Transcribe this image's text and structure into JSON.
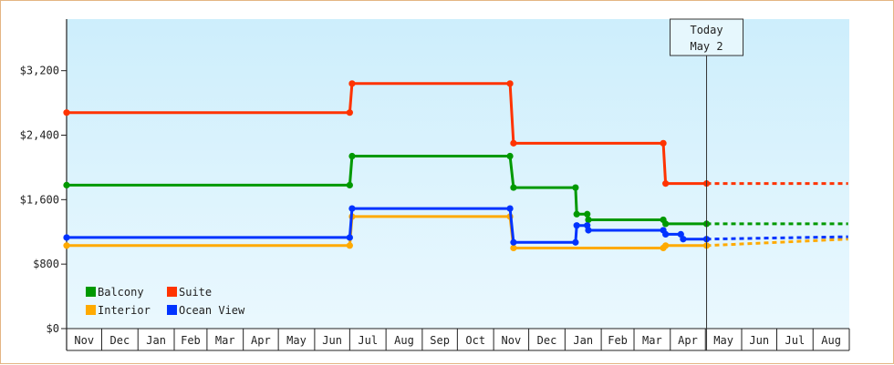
{
  "chart_data": {
    "type": "line",
    "title": "",
    "xlabel": "",
    "ylabel": "",
    "x_months": [
      "Nov",
      "Dec",
      "Jan",
      "Feb",
      "Mar",
      "Apr",
      "May",
      "Jun",
      "Jul",
      "Aug",
      "Sep",
      "Oct",
      "Nov",
      "Dec",
      "Jan",
      "Feb",
      "Mar",
      "Apr",
      "May",
      "Jun",
      "Jul",
      "Aug"
    ],
    "x_range": [
      "2020-11-01",
      "2022-08-31"
    ],
    "ylim": [
      0,
      3840
    ],
    "y_ticks": [
      0,
      800,
      1600,
      2400,
      3200
    ],
    "y_tick_labels": [
      "$0",
      "$800",
      "$1,600",
      "$2,400",
      "$3,200"
    ],
    "grid": false,
    "legend_position": "bottom-left",
    "today": {
      "date": "2022-05-02",
      "label_line1": "Today",
      "label_line2": "May 2"
    },
    "series": [
      {
        "name": "Balcony",
        "color": "#009900",
        "points": [
          {
            "date": "2020-11-01",
            "value": 1780
          },
          {
            "date": "2021-07-01",
            "value": 1780
          },
          {
            "date": "2021-07-03",
            "value": 2140
          },
          {
            "date": "2021-11-15",
            "value": 2140
          },
          {
            "date": "2021-11-18",
            "value": 1750
          },
          {
            "date": "2022-01-10",
            "value": 1750
          },
          {
            "date": "2022-01-11",
            "value": 1420
          },
          {
            "date": "2022-01-20",
            "value": 1420
          },
          {
            "date": "2022-01-21",
            "value": 1350
          },
          {
            "date": "2022-03-26",
            "value": 1350
          },
          {
            "date": "2022-03-28",
            "value": 1300
          },
          {
            "date": "2022-05-02",
            "value": 1300
          }
        ],
        "forecast": [
          {
            "date": "2022-05-02",
            "value": 1300
          },
          {
            "date": "2022-08-31",
            "value": 1300
          }
        ]
      },
      {
        "name": "Suite",
        "color": "#ff3300",
        "points": [
          {
            "date": "2020-11-01",
            "value": 2680
          },
          {
            "date": "2021-07-01",
            "value": 2680
          },
          {
            "date": "2021-07-03",
            "value": 3040
          },
          {
            "date": "2021-11-15",
            "value": 3040
          },
          {
            "date": "2021-11-18",
            "value": 2300
          },
          {
            "date": "2022-03-26",
            "value": 2300
          },
          {
            "date": "2022-03-28",
            "value": 1800
          },
          {
            "date": "2022-05-02",
            "value": 1800
          }
        ],
        "forecast": [
          {
            "date": "2022-05-02",
            "value": 1800
          },
          {
            "date": "2022-08-31",
            "value": 1800
          }
        ]
      },
      {
        "name": "Interior",
        "color": "#ffaa00",
        "points": [
          {
            "date": "2020-11-01",
            "value": 1030
          },
          {
            "date": "2021-07-01",
            "value": 1030
          },
          {
            "date": "2021-07-03",
            "value": 1390
          },
          {
            "date": "2021-11-15",
            "value": 1390
          },
          {
            "date": "2021-11-18",
            "value": 1000
          },
          {
            "date": "2022-03-26",
            "value": 1000
          },
          {
            "date": "2022-03-28",
            "value": 1030
          },
          {
            "date": "2022-05-02",
            "value": 1030
          }
        ],
        "forecast": [
          {
            "date": "2022-05-02",
            "value": 1030
          },
          {
            "date": "2022-08-31",
            "value": 1110
          }
        ]
      },
      {
        "name": "Ocean View",
        "color": "#0033ff",
        "points": [
          {
            "date": "2020-11-01",
            "value": 1130
          },
          {
            "date": "2021-07-01",
            "value": 1130
          },
          {
            "date": "2021-07-03",
            "value": 1490
          },
          {
            "date": "2021-11-15",
            "value": 1490
          },
          {
            "date": "2021-11-18",
            "value": 1070
          },
          {
            "date": "2022-01-10",
            "value": 1070
          },
          {
            "date": "2022-01-11",
            "value": 1280
          },
          {
            "date": "2022-01-20",
            "value": 1280
          },
          {
            "date": "2022-01-21",
            "value": 1220
          },
          {
            "date": "2022-03-26",
            "value": 1220
          },
          {
            "date": "2022-03-28",
            "value": 1170
          },
          {
            "date": "2022-04-10",
            "value": 1170
          },
          {
            "date": "2022-04-12",
            "value": 1110
          },
          {
            "date": "2022-05-02",
            "value": 1110
          }
        ],
        "forecast": [
          {
            "date": "2022-05-02",
            "value": 1110
          },
          {
            "date": "2022-08-31",
            "value": 1140
          }
        ]
      }
    ],
    "legend_order": [
      "Balcony",
      "Suite",
      "Interior",
      "Ocean View"
    ]
  }
}
